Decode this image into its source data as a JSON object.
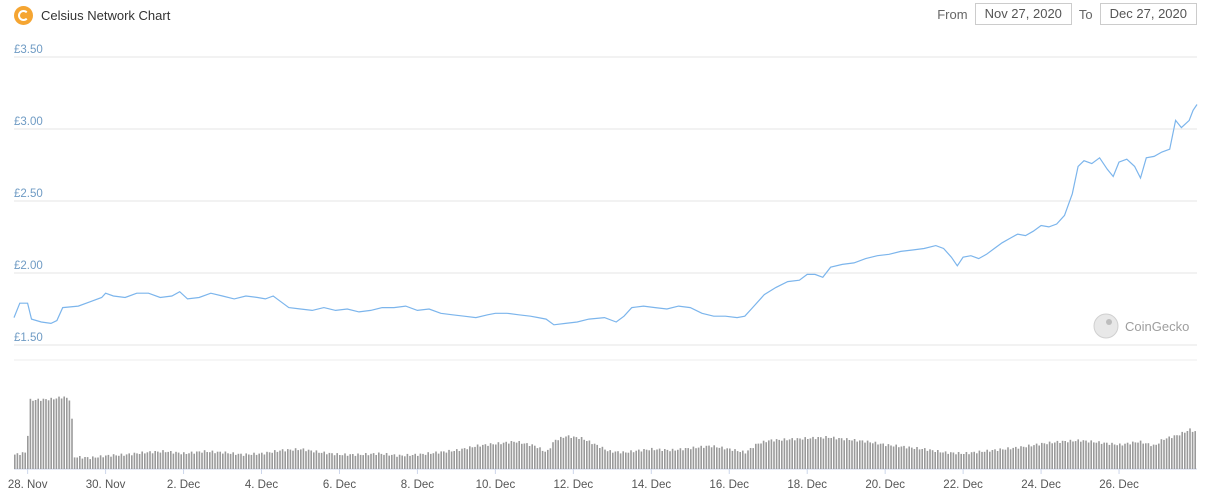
{
  "header": {
    "title": "Celsius Network Chart",
    "from_label": "From",
    "from_value": "Nov 27, 2020",
    "to_label": "To",
    "to_value": "Dec 27, 2020"
  },
  "watermark": "CoinGecko",
  "colors": {
    "price_line": "#7cb5ec",
    "volume_bar": "#9a9a9a",
    "logo": "#f5a532"
  },
  "chart_data": {
    "type": "line",
    "title": "Celsius Network Chart",
    "xlabel": "",
    "ylabel": "",
    "ylim": [
      1.5,
      3.5
    ],
    "x_range_days": [
      27.65,
      58.0
    ],
    "yticks": [
      {
        "value": 1.5,
        "label": "£1.50"
      },
      {
        "value": 2.0,
        "label": "£2.00"
      },
      {
        "value": 2.5,
        "label": "£2.50"
      },
      {
        "value": 3.0,
        "label": "£3.00"
      },
      {
        "value": 3.5,
        "label": "£3.50"
      }
    ],
    "xticks": [
      {
        "day": 28,
        "label": "28. Nov"
      },
      {
        "day": 30,
        "label": "30. Nov"
      },
      {
        "day": 32,
        "label": "2. Dec"
      },
      {
        "day": 34,
        "label": "4. Dec"
      },
      {
        "day": 36,
        "label": "6. Dec"
      },
      {
        "day": 38,
        "label": "8. Dec"
      },
      {
        "day": 40,
        "label": "10. Dec"
      },
      {
        "day": 42,
        "label": "12. Dec"
      },
      {
        "day": 44,
        "label": "14. Dec"
      },
      {
        "day": 46,
        "label": "16. Dec"
      },
      {
        "day": 48,
        "label": "18. Dec"
      },
      {
        "day": 50,
        "label": "20. Dec"
      },
      {
        "day": 52,
        "label": "22. Dec"
      },
      {
        "day": 54,
        "label": "24. Dec"
      },
      {
        "day": 56,
        "label": "26. Dec"
      }
    ],
    "grid": true,
    "price_series": [
      [
        27.65,
        1.69
      ],
      [
        27.8,
        1.79
      ],
      [
        28.0,
        1.79
      ],
      [
        28.1,
        1.68
      ],
      [
        28.35,
        1.66
      ],
      [
        28.6,
        1.65
      ],
      [
        28.75,
        1.67
      ],
      [
        28.9,
        1.76
      ],
      [
        29.3,
        1.77
      ],
      [
        29.6,
        1.8
      ],
      [
        29.9,
        1.83
      ],
      [
        30.0,
        1.86
      ],
      [
        30.2,
        1.84
      ],
      [
        30.5,
        1.83
      ],
      [
        30.8,
        1.86
      ],
      [
        31.1,
        1.86
      ],
      [
        31.4,
        1.83
      ],
      [
        31.7,
        1.84
      ],
      [
        31.9,
        1.87
      ],
      [
        32.1,
        1.82
      ],
      [
        32.4,
        1.83
      ],
      [
        32.7,
        1.86
      ],
      [
        33.0,
        1.84
      ],
      [
        33.3,
        1.82
      ],
      [
        33.6,
        1.84
      ],
      [
        33.9,
        1.83
      ],
      [
        34.1,
        1.82
      ],
      [
        34.3,
        1.84
      ],
      [
        34.5,
        1.8
      ],
      [
        34.7,
        1.76
      ],
      [
        35.0,
        1.75
      ],
      [
        35.3,
        1.74
      ],
      [
        35.6,
        1.76
      ],
      [
        35.9,
        1.74
      ],
      [
        36.2,
        1.75
      ],
      [
        36.5,
        1.73
      ],
      [
        36.8,
        1.74
      ],
      [
        37.1,
        1.76
      ],
      [
        37.4,
        1.76
      ],
      [
        37.7,
        1.77
      ],
      [
        38.0,
        1.74
      ],
      [
        38.3,
        1.75
      ],
      [
        38.6,
        1.72
      ],
      [
        38.9,
        1.71
      ],
      [
        39.2,
        1.7
      ],
      [
        39.5,
        1.69
      ],
      [
        39.8,
        1.71
      ],
      [
        40.0,
        1.72
      ],
      [
        40.3,
        1.72
      ],
      [
        40.6,
        1.71
      ],
      [
        40.9,
        1.7
      ],
      [
        41.1,
        1.69
      ],
      [
        41.3,
        1.68
      ],
      [
        41.5,
        1.64
      ],
      [
        41.8,
        1.65
      ],
      [
        42.1,
        1.66
      ],
      [
        42.4,
        1.68
      ],
      [
        42.8,
        1.69
      ],
      [
        43.1,
        1.66
      ],
      [
        43.3,
        1.7
      ],
      [
        43.5,
        1.76
      ],
      [
        43.8,
        1.77
      ],
      [
        44.1,
        1.76
      ],
      [
        44.4,
        1.75
      ],
      [
        44.7,
        1.77
      ],
      [
        45.0,
        1.76
      ],
      [
        45.3,
        1.72
      ],
      [
        45.6,
        1.7
      ],
      [
        45.9,
        1.7
      ],
      [
        46.2,
        1.69
      ],
      [
        46.4,
        1.7
      ],
      [
        46.6,
        1.76
      ],
      [
        46.9,
        1.85
      ],
      [
        47.2,
        1.9
      ],
      [
        47.5,
        1.94
      ],
      [
        47.8,
        1.95
      ],
      [
        48.0,
        1.99
      ],
      [
        48.2,
        1.99
      ],
      [
        48.4,
        1.97
      ],
      [
        48.6,
        2.04
      ],
      [
        48.9,
        2.06
      ],
      [
        49.2,
        2.07
      ],
      [
        49.5,
        2.1
      ],
      [
        49.8,
        2.12
      ],
      [
        50.1,
        2.13
      ],
      [
        50.4,
        2.15
      ],
      [
        50.7,
        2.16
      ],
      [
        51.0,
        2.17
      ],
      [
        51.3,
        2.19
      ],
      [
        51.5,
        2.17
      ],
      [
        51.7,
        2.11
      ],
      [
        51.85,
        2.05
      ],
      [
        52.0,
        2.11
      ],
      [
        52.2,
        2.12
      ],
      [
        52.4,
        2.1
      ],
      [
        52.6,
        2.13
      ],
      [
        52.8,
        2.17
      ],
      [
        53.0,
        2.21
      ],
      [
        53.2,
        2.24
      ],
      [
        53.4,
        2.27
      ],
      [
        53.6,
        2.26
      ],
      [
        53.8,
        2.29
      ],
      [
        54.0,
        2.33
      ],
      [
        54.2,
        2.32
      ],
      [
        54.4,
        2.34
      ],
      [
        54.6,
        2.4
      ],
      [
        54.8,
        2.55
      ],
      [
        54.95,
        2.74
      ],
      [
        55.1,
        2.78
      ],
      [
        55.3,
        2.76
      ],
      [
        55.5,
        2.8
      ],
      [
        55.7,
        2.72
      ],
      [
        55.85,
        2.67
      ],
      [
        56.0,
        2.77
      ],
      [
        56.2,
        2.79
      ],
      [
        56.4,
        2.74
      ],
      [
        56.55,
        2.66
      ],
      [
        56.7,
        2.8
      ],
      [
        56.9,
        2.81
      ],
      [
        57.1,
        2.84
      ],
      [
        57.3,
        2.86
      ],
      [
        57.45,
        3.06
      ],
      [
        57.6,
        3.01
      ],
      [
        57.8,
        3.06
      ],
      [
        57.9,
        3.13
      ],
      [
        58.0,
        3.17
      ]
    ],
    "volume_series": [
      [
        27.65,
        0.12
      ],
      [
        27.95,
        0.14
      ],
      [
        28.05,
        0.62
      ],
      [
        28.6,
        0.63
      ],
      [
        28.9,
        0.65
      ],
      [
        29.1,
        0.62
      ],
      [
        29.15,
        0.1
      ],
      [
        29.6,
        0.09
      ],
      [
        30.0,
        0.11
      ],
      [
        30.5,
        0.12
      ],
      [
        31.0,
        0.14
      ],
      [
        31.5,
        0.15
      ],
      [
        32.0,
        0.13
      ],
      [
        32.5,
        0.15
      ],
      [
        33.0,
        0.14
      ],
      [
        33.5,
        0.12
      ],
      [
        34.0,
        0.13
      ],
      [
        34.5,
        0.16
      ],
      [
        35.0,
        0.17
      ],
      [
        35.5,
        0.14
      ],
      [
        36.0,
        0.12
      ],
      [
        36.5,
        0.12
      ],
      [
        37.0,
        0.13
      ],
      [
        37.5,
        0.11
      ],
      [
        38.0,
        0.12
      ],
      [
        38.5,
        0.14
      ],
      [
        39.0,
        0.16
      ],
      [
        39.5,
        0.2
      ],
      [
        40.0,
        0.22
      ],
      [
        40.5,
        0.24
      ],
      [
        41.0,
        0.2
      ],
      [
        41.3,
        0.14
      ],
      [
        41.5,
        0.25
      ],
      [
        41.8,
        0.29
      ],
      [
        42.2,
        0.27
      ],
      [
        42.5,
        0.22
      ],
      [
        42.9,
        0.15
      ],
      [
        43.3,
        0.14
      ],
      [
        43.7,
        0.16
      ],
      [
        44.0,
        0.17
      ],
      [
        44.5,
        0.16
      ],
      [
        45.0,
        0.18
      ],
      [
        45.5,
        0.2
      ],
      [
        46.0,
        0.17
      ],
      [
        46.4,
        0.14
      ],
      [
        46.7,
        0.22
      ],
      [
        47.0,
        0.25
      ],
      [
        47.5,
        0.26
      ],
      [
        48.0,
        0.27
      ],
      [
        48.5,
        0.28
      ],
      [
        49.0,
        0.26
      ],
      [
        49.5,
        0.24
      ],
      [
        50.0,
        0.21
      ],
      [
        50.5,
        0.19
      ],
      [
        51.0,
        0.17
      ],
      [
        51.5,
        0.14
      ],
      [
        52.0,
        0.13
      ],
      [
        52.5,
        0.15
      ],
      [
        53.0,
        0.17
      ],
      [
        53.5,
        0.19
      ],
      [
        54.0,
        0.22
      ],
      [
        54.5,
        0.24
      ],
      [
        55.0,
        0.25
      ],
      [
        55.5,
        0.23
      ],
      [
        56.0,
        0.21
      ],
      [
        56.5,
        0.24
      ],
      [
        56.9,
        0.2
      ],
      [
        57.1,
        0.26
      ],
      [
        57.5,
        0.3
      ],
      [
        57.8,
        0.35
      ],
      [
        58.0,
        0.32
      ]
    ]
  }
}
